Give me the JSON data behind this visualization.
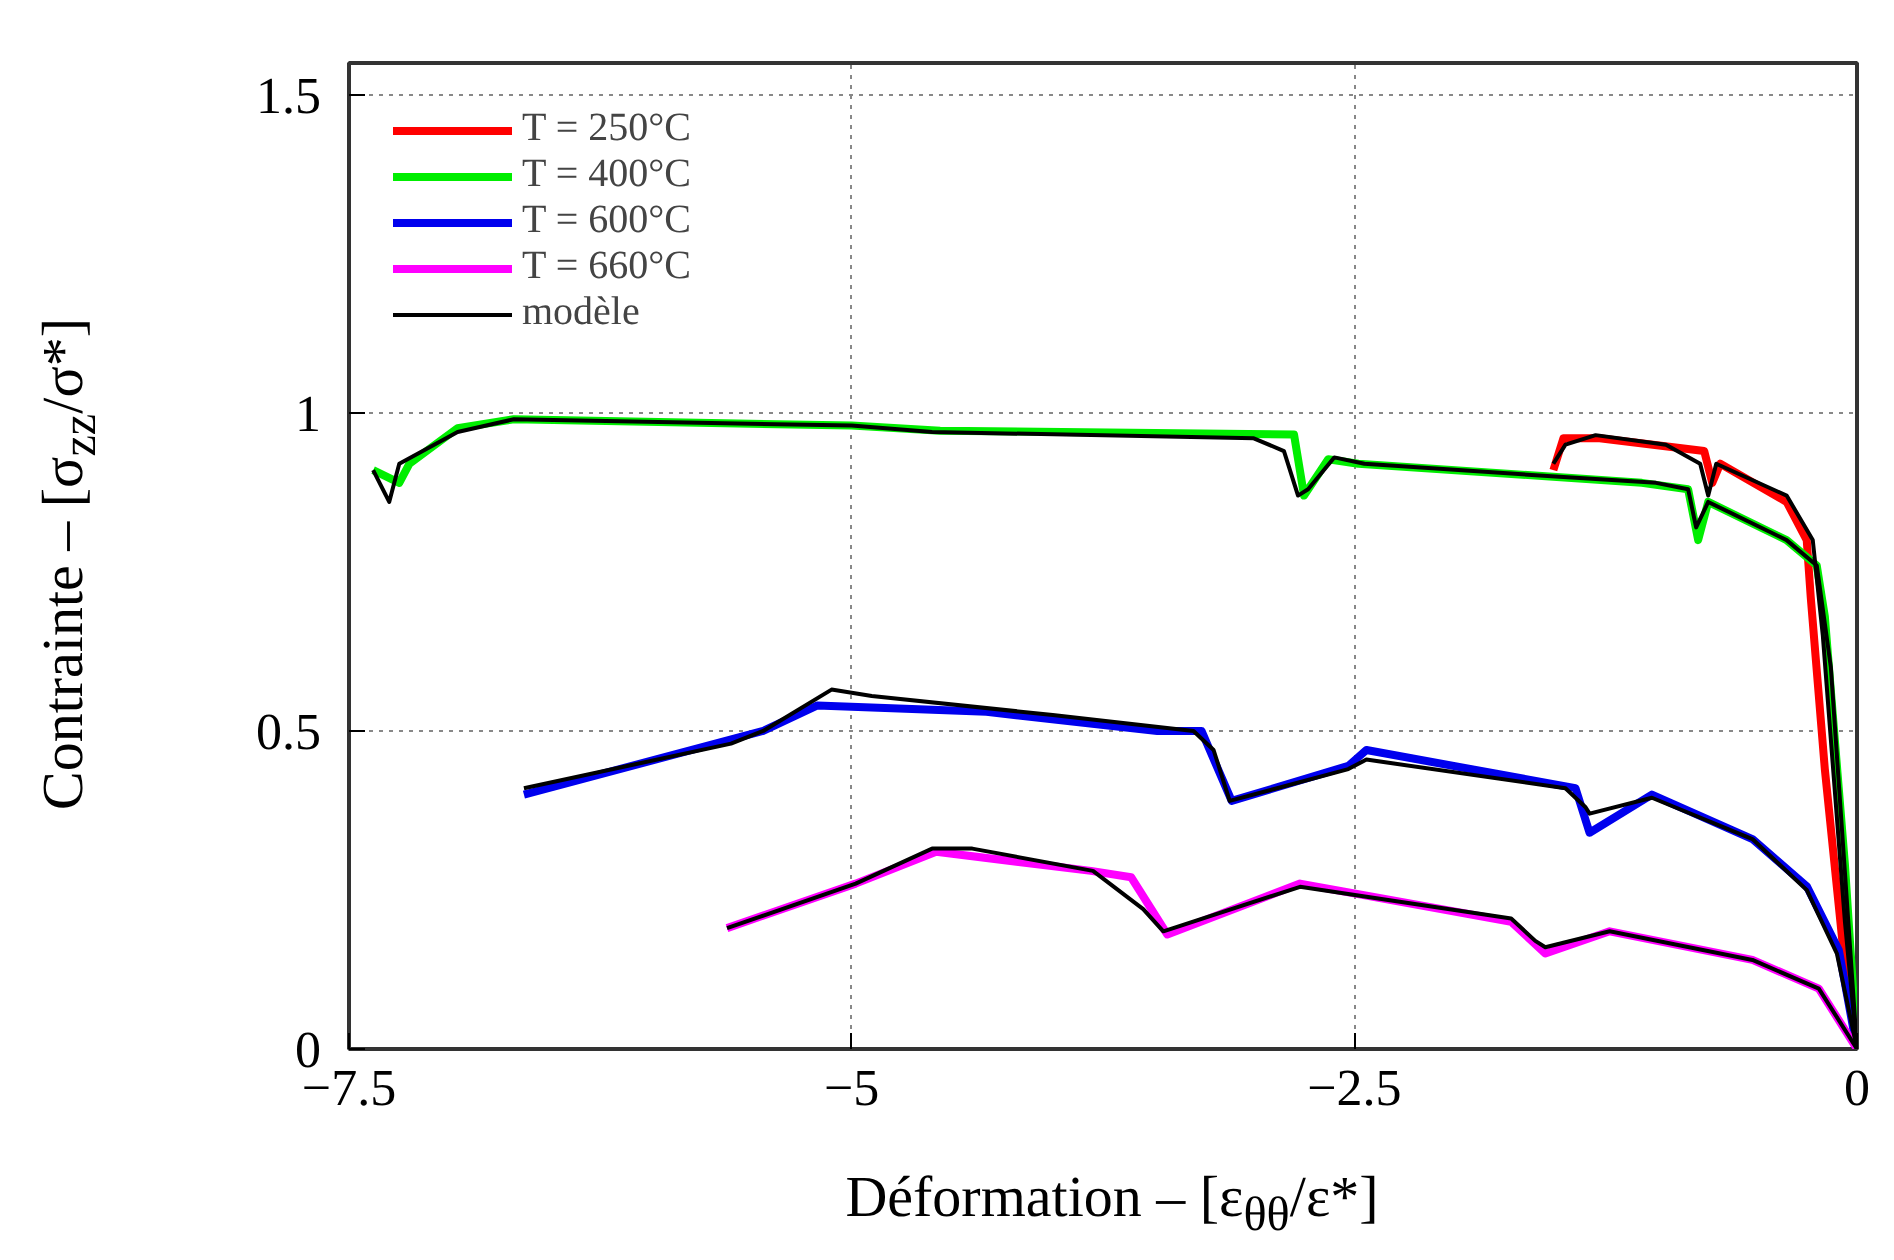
{
  "chart_data": {
    "type": "line",
    "xlabel": "Déformation – [ε$_{θθ}$/ε*]",
    "ylabel": "Contrainte – [σ$_{zz}$/σ*]",
    "xlim": [
      -7.5,
      0
    ],
    "ylim": [
      0,
      1.55
    ],
    "xticks": [
      {
        "value": -7.5,
        "label": "−7.5"
      },
      {
        "value": -5,
        "label": "−5"
      },
      {
        "value": -2.5,
        "label": "−2.5"
      },
      0
    ],
    "yticks": [
      0,
      0.5,
      1,
      1.5
    ],
    "grid": true,
    "legend": "top left",
    "marker": "none",
    "line_style": "solid",
    "series": [
      {
        "name": "T = 250°C",
        "color": "#ff0000",
        "x": [
          -1.51,
          -1.46,
          -1.28,
          -0.76,
          -0.72,
          -0.68,
          -0.35,
          -0.25,
          -0.23,
          -0.16,
          -0.06,
          0
        ],
        "values": [
          0.91,
          0.96,
          0.96,
          0.94,
          0.89,
          0.92,
          0.86,
          0.8,
          0.71,
          0.44,
          0.13,
          0
        ]
      },
      {
        "name": "T = 400°C",
        "color": "#00ee00",
        "x": [
          -7.38,
          -7.25,
          -7.2,
          -6.96,
          -6.68,
          -5,
          -4.56,
          -2.8,
          -2.75,
          -2.63,
          -2.48,
          -1.53,
          -1.07,
          -0.84,
          -0.79,
          -0.74,
          -0.35,
          -0.2,
          -0.16,
          -0.06,
          0
        ],
        "values": [
          0.91,
          0.89,
          0.92,
          0.976,
          0.99,
          0.98,
          0.972,
          0.966,
          0.87,
          0.927,
          0.92,
          0.9,
          0.89,
          0.88,
          0.8,
          0.86,
          0.8,
          0.76,
          0.68,
          0.29,
          0
        ]
      },
      {
        "name": "T = 600°C",
        "color": "#0000ee",
        "x": [
          -6.63,
          -5.44,
          -5.17,
          -4.33,
          -3.48,
          -3.26,
          -3.11,
          -2.53,
          -2.44,
          -1.4,
          -1.33,
          -1.02,
          -0.52,
          -0.25,
          -0.09,
          0
        ],
        "values": [
          0.4,
          0.5,
          0.54,
          0.53,
          0.5,
          0.5,
          0.39,
          0.445,
          0.47,
          0.41,
          0.34,
          0.4,
          0.33,
          0.256,
          0.155,
          0
        ]
      },
      {
        "name": "T = 660°C",
        "color": "#ff00ff",
        "x": [
          -5.62,
          -4.98,
          -4.58,
          -3.81,
          -3.61,
          -3.43,
          -2.77,
          -1.72,
          -1.55,
          -1.23,
          -0.52,
          -0.19,
          0
        ],
        "values": [
          0.19,
          0.26,
          0.31,
          0.28,
          0.27,
          0.18,
          0.26,
          0.2,
          0.15,
          0.185,
          0.14,
          0.095,
          0
        ]
      },
      {
        "name": "modèle",
        "color": "#000000",
        "x": [
          -1.51,
          -1.45,
          -1.3,
          -0.95,
          -0.78,
          -0.74,
          -0.7,
          -0.35,
          -0.22,
          -0.17,
          -0.06,
          0
        ],
        "values": [
          0.92,
          0.95,
          0.965,
          0.95,
          0.92,
          0.87,
          0.92,
          0.87,
          0.8,
          0.65,
          0.2,
          0
        ]
      },
      {
        "color": "#000000",
        "x": [
          -7.38,
          -7.3,
          -7.25,
          -6.96,
          -6.68,
          -5,
          -4.6,
          -3,
          -2.85,
          -2.78,
          -2.73,
          -2.6,
          -2.45,
          -1.5,
          -1,
          -0.84,
          -0.8,
          -0.74,
          -0.35,
          -0.2,
          -0.13,
          0
        ],
        "values": [
          0.91,
          0.86,
          0.92,
          0.97,
          0.99,
          0.98,
          0.97,
          0.96,
          0.94,
          0.87,
          0.88,
          0.93,
          0.92,
          0.9,
          0.89,
          0.88,
          0.82,
          0.86,
          0.8,
          0.76,
          0.6,
          0
        ]
      },
      {
        "color": "#000000",
        "x": [
          -6.63,
          -5.6,
          -5.44,
          -5.1,
          -4.9,
          -4,
          -3.3,
          -3.2,
          -3.12,
          -2.53,
          -2.44,
          -1.45,
          -1.35,
          -1.33,
          -1.02,
          -0.52,
          -0.25,
          -0.1,
          0
        ],
        "values": [
          0.41,
          0.48,
          0.5,
          0.565,
          0.555,
          0.525,
          0.5,
          0.47,
          0.39,
          0.44,
          0.455,
          0.41,
          0.38,
          0.37,
          0.395,
          0.33,
          0.25,
          0.15,
          0
        ]
      },
      {
        "color": "#000000",
        "x": [
          -5.62,
          -4.98,
          -4.6,
          -4.4,
          -3.8,
          -3.55,
          -3.45,
          -2.77,
          -1.72,
          -1.6,
          -1.55,
          -1.23,
          -0.52,
          -0.19,
          0
        ],
        "values": [
          0.19,
          0.26,
          0.315,
          0.315,
          0.28,
          0.22,
          0.185,
          0.255,
          0.205,
          0.17,
          0.16,
          0.185,
          0.14,
          0.095,
          0
        ]
      }
    ]
  }
}
